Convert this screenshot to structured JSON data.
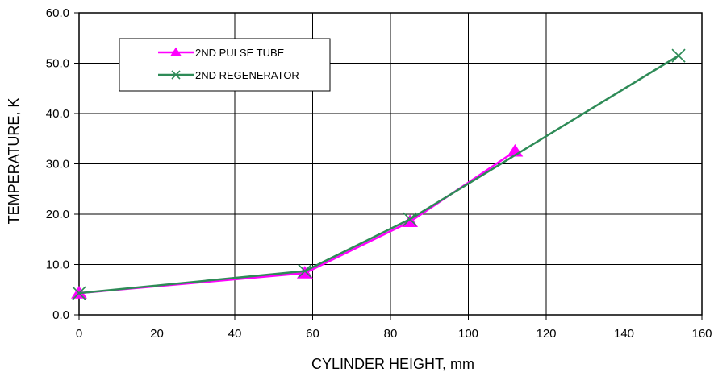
{
  "chart_data": {
    "type": "line",
    "title": "",
    "xlabel": "CYLINDER HEIGHT, mm",
    "ylabel": "TEMPERATURE, K",
    "xlim": [
      0,
      160
    ],
    "ylim": [
      0,
      60
    ],
    "xticks": [
      "0",
      "20",
      "40",
      "60",
      "80",
      "100",
      "120",
      "140",
      "160"
    ],
    "yticks": [
      "0.0",
      "10.0",
      "20.0",
      "30.0",
      "40.0",
      "50.0",
      "60.0"
    ],
    "grid": true,
    "legend_position": "top-left",
    "series": [
      {
        "name": "2ND PULSE TUBE",
        "color": "#ff00ff",
        "marker": "triangle",
        "x": [
          0,
          58,
          85,
          112
        ],
        "y": [
          4.3,
          8.3,
          18.5,
          32.5
        ]
      },
      {
        "name": "2ND REGENERATOR",
        "color": "#2e8b57",
        "marker": "x",
        "x": [
          0,
          58,
          85,
          154
        ],
        "y": [
          4.3,
          8.7,
          19.0,
          51.5
        ]
      }
    ]
  }
}
